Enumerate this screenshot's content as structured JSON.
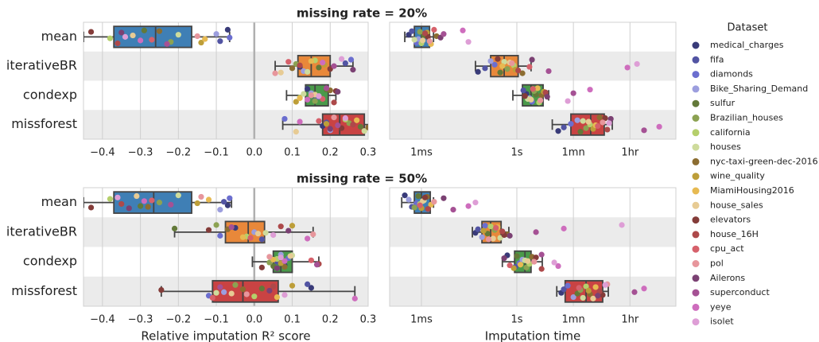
{
  "legend": {
    "title": "Dataset",
    "names": [
      "medical_charges",
      "fifa",
      "diamonds",
      "Bike_Sharing_Demand",
      "sulfur",
      "Brazilian_houses",
      "california",
      "houses",
      "nyc-taxi-green-dec-2016",
      "wine_quality",
      "MiamiHousing2016",
      "house_sales",
      "elevators",
      "house_16H",
      "cpu_act",
      "pol",
      "Ailerons",
      "superconduct",
      "yeye",
      "isolet"
    ],
    "colors": [
      "#393b79",
      "#5254a3",
      "#6b6ecf",
      "#9c9ede",
      "#637939",
      "#8ca252",
      "#b5cf6b",
      "#cedb9c",
      "#8c6d31",
      "#bd9e39",
      "#e7ba52",
      "#e7cb94",
      "#843c39",
      "#ad494a",
      "#d6616b",
      "#e7969c",
      "#7b4173",
      "#a55194",
      "#ce6dbd",
      "#de9ed6"
    ]
  },
  "chart_data": [
    {
      "type": "box",
      "title": "missing rate = 20%",
      "categories": [
        "mean",
        "iterativeBR",
        "condexp",
        "missforest"
      ],
      "colors": [
        "#3f7fb5",
        "#e8883a",
        "#4a9a4a",
        "#c94343"
      ],
      "log_x": false,
      "grid": true,
      "reference_line": 0,
      "xlim": [
        -0.45,
        0.3
      ],
      "xticks": [
        {
          "value": -0.4,
          "label": "−0.4"
        },
        {
          "value": -0.3,
          "label": "−0.3"
        },
        {
          "value": -0.2,
          "label": "−0.2"
        },
        {
          "value": -0.1,
          "label": "−0.1"
        },
        {
          "value": 0,
          "label": "0.0"
        },
        0.1,
        0.2,
        0.3
      ],
      "boxes": [
        {
          "min": -0.45,
          "q1": -0.37,
          "median": -0.26,
          "q3": -0.165,
          "max": -0.065
        },
        {
          "min": 0.055,
          "q1": 0.115,
          "median": 0.15,
          "q3": 0.2,
          "max": 0.26
        },
        {
          "min": 0.085,
          "q1": 0.135,
          "median": 0.16,
          "q3": 0.195,
          "max": 0.215
        },
        {
          "min": 0.075,
          "q1": 0.18,
          "median": 0.225,
          "q3": 0.29,
          "max": 0.31
        }
      ],
      "points": [
        [
          -0.07,
          0.12,
          0.14,
          0.18
        ],
        [
          -0.09,
          0.24,
          0.16,
          0.19
        ],
        [
          -0.065,
          0.255,
          0.17,
          0.08
        ],
        [
          -0.1,
          0.13,
          0.15,
          0.2
        ],
        [
          -0.29,
          0.17,
          0.19,
          0.28
        ],
        [
          -0.22,
          0.11,
          0.16,
          0.25
        ],
        [
          -0.38,
          0.16,
          0.12,
          0.24
        ],
        [
          -0.2,
          0.14,
          0.13,
          0.29
        ],
        [
          -0.25,
          0.1,
          0.2,
          0.3
        ],
        [
          -0.14,
          0.185,
          0.11,
          0.19
        ],
        [
          -0.13,
          0.15,
          0.12,
          0.27
        ],
        [
          -0.32,
          0.07,
          0.16,
          0.11
        ],
        [
          -0.43,
          0.2,
          0.215,
          0.23
        ],
        [
          -0.36,
          0.12,
          0.21,
          0.26
        ],
        [
          -0.27,
          0.09,
          0.18,
          0.17
        ],
        [
          -0.15,
          0.055,
          0.15,
          0.21
        ],
        [
          -0.35,
          0.26,
          0.22,
          0.2
        ],
        [
          -0.23,
          0.21,
          0.19,
          0.22
        ],
        [
          -0.3,
          0.18,
          0.14,
          0.12
        ],
        [
          -0.34,
          0.23,
          0.17,
          0.24
        ]
      ]
    },
    {
      "type": "box",
      "colors": [
        "#3f7fb5",
        "#e8883a",
        "#4a9a4a",
        "#c94343"
      ],
      "log_x": true,
      "grid": true,
      "xlim": [
        0.0001,
        100000
      ],
      "xticks": [
        {
          "value": 0.001,
          "label": "1ms"
        },
        {
          "value": 1,
          "label": "1s"
        },
        {
          "value": 60,
          "label": "1mn"
        },
        {
          "value": 3600,
          "label": "1hr"
        }
      ],
      "boxes": [
        {
          "min": 0.0003,
          "q1": 0.0006,
          "median": 0.001,
          "q3": 0.0018,
          "max": 0.0024
        },
        {
          "min": 0.05,
          "q1": 0.15,
          "median": 0.4,
          "q3": 1.1,
          "max": 2.8
        },
        {
          "min": 0.75,
          "q1": 1.5,
          "median": 2.8,
          "q3": 6.7,
          "max": 10
        },
        {
          "min": 13,
          "q1": 50,
          "median": 210,
          "q3": 560,
          "max": 1000
        }
      ],
      "points": [
        [
          0.0004,
          0.06,
          2,
          20
        ],
        [
          0.0005,
          0.1,
          1.6,
          30
        ],
        [
          0.0007,
          0.2,
          3,
          50
        ],
        [
          0.0008,
          0.15,
          2.5,
          80
        ],
        [
          0.0012,
          0.3,
          4,
          100
        ],
        [
          0.0009,
          0.5,
          3.5,
          150
        ],
        [
          0.001,
          0.8,
          5,
          200
        ],
        [
          0.0006,
          0.4,
          2.2,
          120
        ],
        [
          0.003,
          1.5,
          6,
          400
        ],
        [
          0.0015,
          0.9,
          7,
          250
        ],
        [
          0.002,
          0.35,
          4.5,
          300
        ],
        [
          0.0011,
          0.6,
          2.8,
          180
        ],
        [
          0.0016,
          0.25,
          1.8,
          600
        ],
        [
          0.0013,
          1.1,
          8,
          700
        ],
        [
          0.0025,
          2.5,
          3.2,
          350
        ],
        [
          0.0018,
          0.7,
          5.5,
          500
        ],
        [
          0.004,
          3,
          9,
          900
        ],
        [
          0.005,
          10,
          60,
          10000
        ],
        [
          0.02,
          3000,
          200,
          30000
        ],
        [
          0.03,
          6000,
          40,
          800
        ]
      ]
    },
    {
      "type": "box",
      "title": "missing rate = 50%",
      "xlabel": "Relative imputation R² score",
      "categories": [
        "mean",
        "iterativeBR",
        "condexp",
        "missforest"
      ],
      "colors": [
        "#3f7fb5",
        "#e8883a",
        "#4a9a4a",
        "#c94343"
      ],
      "log_x": false,
      "grid": true,
      "reference_line": 0,
      "xlim": [
        -0.45,
        0.3
      ],
      "xticks": [
        {
          "value": -0.4,
          "label": "−0.4"
        },
        {
          "value": -0.3,
          "label": "−0.3"
        },
        {
          "value": -0.2,
          "label": "−0.2"
        },
        {
          "value": -0.1,
          "label": "−0.1"
        },
        {
          "value": 0,
          "label": "0.0"
        },
        0.1,
        0.2,
        0.3
      ],
      "boxes": [
        {
          "min": -0.45,
          "q1": -0.37,
          "median": -0.265,
          "q3": -0.165,
          "max": -0.06
        },
        {
          "min": -0.21,
          "q1": -0.076,
          "median": -0.016,
          "q3": 0.027,
          "max": 0.155
        },
        {
          "min": -0.005,
          "q1": 0.05,
          "median": 0.07,
          "q3": 0.1,
          "max": 0.17
        },
        {
          "min": -0.245,
          "q1": -0.11,
          "median": -0.03,
          "q3": 0.063,
          "max": 0.265
        }
      ],
      "points": [
        [
          -0.07,
          -0.05,
          0.08,
          0.15
        ],
        [
          -0.08,
          0.02,
          0.06,
          0.14
        ],
        [
          -0.065,
          -0.09,
          0.09,
          -0.12
        ],
        [
          -0.09,
          0.0,
          0.07,
          -0.08
        ],
        [
          -0.3,
          -0.21,
          0.05,
          0.02
        ],
        [
          -0.25,
          -0.1,
          0.04,
          -0.05
        ],
        [
          -0.38,
          -0.02,
          0.06,
          0.0
        ],
        [
          -0.2,
          0.03,
          0.1,
          -0.1
        ],
        [
          -0.28,
          -0.07,
          0.08,
          -0.03
        ],
        [
          -0.15,
          0.1,
          0.07,
          0.1
        ],
        [
          -0.12,
          -0.03,
          0.05,
          0.06
        ],
        [
          -0.31,
          0.01,
          0.095,
          -0.06
        ],
        [
          -0.43,
          -0.12,
          0.02,
          -0.245
        ],
        [
          -0.35,
          0.07,
          0.17,
          0.05
        ],
        [
          -0.27,
          -0.01,
          0.15,
          -0.11
        ],
        [
          -0.14,
          0.155,
          0.04,
          -0.02
        ],
        [
          -0.33,
          0.09,
          0.06,
          0.04
        ],
        [
          -0.22,
          -0.06,
          0.165,
          -0.09
        ],
        [
          -0.29,
          0.14,
          0.08,
          0.265
        ],
        [
          -0.36,
          0.05,
          0.07,
          0.08
        ]
      ]
    },
    {
      "type": "box",
      "xlabel": "Imputation time",
      "colors": [
        "#3f7fb5",
        "#e8883a",
        "#4a9a4a",
        "#c94343"
      ],
      "log_x": true,
      "grid": true,
      "xlim": [
        0.0001,
        100000
      ],
      "xticks": [
        {
          "value": 0.001,
          "label": "1ms"
        },
        {
          "value": 1,
          "label": "1s"
        },
        {
          "value": 60,
          "label": "1mn"
        },
        {
          "value": 3600,
          "label": "1hr"
        }
      ],
      "boxes": [
        {
          "min": 0.00024,
          "q1": 0.0006,
          "median": 0.001,
          "q3": 0.0019,
          "max": 0.0024
        },
        {
          "min": 0.04,
          "q1": 0.08,
          "median": 0.15,
          "q3": 0.32,
          "max": 0.56
        },
        {
          "min": 0.35,
          "q1": 0.85,
          "median": 1.8,
          "q3": 2.8,
          "max": 6.3
        },
        {
          "min": 18,
          "q1": 33,
          "median": 150,
          "q3": 500,
          "max": 750
        }
      ],
      "points": [
        [
          0.0003,
          0.05,
          0.5,
          25
        ],
        [
          0.0005,
          0.06,
          0.9,
          30
        ],
        [
          0.0007,
          0.1,
          1.2,
          40
        ],
        [
          0.0004,
          0.08,
          1.5,
          60
        ],
        [
          0.0008,
          0.12,
          1,
          80
        ],
        [
          0.0006,
          0.2,
          2,
          100
        ],
        [
          0.0009,
          0.15,
          2.5,
          150
        ],
        [
          0.0012,
          0.3,
          1.8,
          120
        ],
        [
          0.0015,
          0.5,
          3,
          200
        ],
        [
          0.001,
          0.09,
          0.8,
          180
        ],
        [
          0.002,
          0.25,
          1.3,
          300
        ],
        [
          0.0011,
          0.18,
          2.2,
          250
        ],
        [
          0.0013,
          0.4,
          4,
          500
        ],
        [
          0.0016,
          0.35,
          6,
          400
        ],
        [
          0.0009,
          0.22,
          0.6,
          90
        ],
        [
          0.0025,
          0.13,
          3.5,
          700
        ],
        [
          0.005,
          0.6,
          0.4,
          350
        ],
        [
          0.01,
          4,
          6,
          5000
        ],
        [
          0.03,
          30,
          20,
          10000
        ],
        [
          0.05,
          2000,
          15,
          600
        ]
      ]
    }
  ]
}
